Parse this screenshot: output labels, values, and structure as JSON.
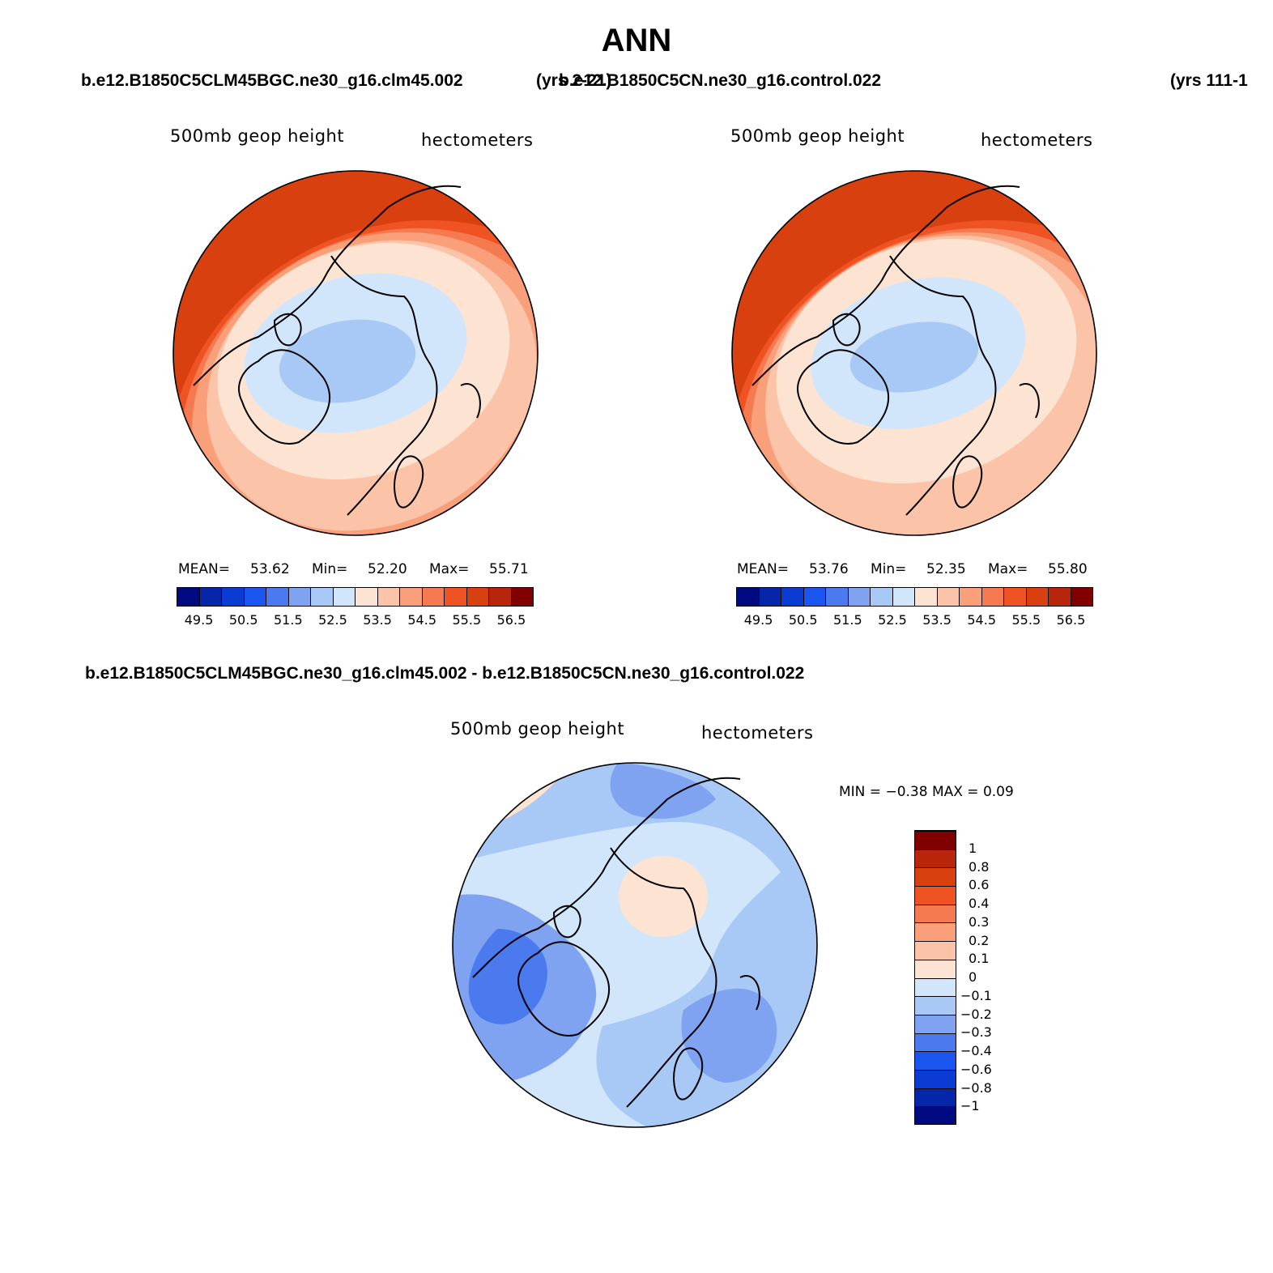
{
  "title": "ANN",
  "chart_data": [
    {
      "type": "heatmap",
      "projection": "north-polar-stereographic",
      "case_title": "b.e12.B1850C5CLM45BGC.ne30_g16.clm45.002",
      "years": "(yrs 2-21)",
      "left_label": "500mb geop height",
      "right_label": "hectometers",
      "mean_label": "MEAN=",
      "mean": "53.62",
      "min_label": "Min=",
      "min": "52.20",
      "max_label": "Max=",
      "max": "55.71",
      "colorbar_ticks": [
        "49.5",
        "50.5",
        "51.5",
        "52.5",
        "53.5",
        "54.5",
        "55.5",
        "56.5"
      ],
      "contour_bands": [
        "#a8c8f5",
        "#d2e6fb",
        "#fde4d2",
        "#fbc4a8",
        "#f9a07a",
        "#f67a4f",
        "#f05323",
        "#d9400f"
      ]
    },
    {
      "type": "heatmap",
      "projection": "north-polar-stereographic",
      "case_title": "b.e12.B1850C5CN.ne30_g16.control.022",
      "years": "(yrs 111-1",
      "left_label": "500mb geop height",
      "right_label": "hectometers",
      "mean_label": "MEAN=",
      "mean": "53.76",
      "min_label": "Min=",
      "min": "52.35",
      "max_label": "Max=",
      "max": "55.80",
      "colorbar_ticks": [
        "49.5",
        "50.5",
        "51.5",
        "52.5",
        "53.5",
        "54.5",
        "55.5",
        "56.5"
      ],
      "contour_bands": [
        "#a8c8f5",
        "#d2e6fb",
        "#fde4d2",
        "#fbc4a8",
        "#f9a07a",
        "#f67a4f",
        "#f05323",
        "#d9400f"
      ]
    },
    {
      "type": "heatmap",
      "projection": "north-polar-stereographic",
      "case_title": "b.e12.B1850C5CLM45BGC.ne30_g16.clm45.002 - b.e12.B1850C5CN.ne30_g16.control.022",
      "left_label": "500mb geop height",
      "right_label": "hectometers",
      "minmax_text": "MIN =   −0.38 MAX =    0.09",
      "colorbar_ticks": [
        "−1",
        "−0.8",
        "−0.6",
        "−0.4",
        "−0.3",
        "−0.2",
        "−0.1",
        "0",
        "0.1",
        "0.2",
        "0.3",
        "0.4",
        "0.6",
        "0.8",
        "1"
      ]
    }
  ],
  "colorscale_16": [
    "#000a80",
    "#0526a8",
    "#0a3cd4",
    "#1a55f0",
    "#4a7aee",
    "#7fa3f0",
    "#a8c8f5",
    "#d2e6fb",
    "#fde4d2",
    "#fbc4a8",
    "#f9a07a",
    "#f67a4f",
    "#f05323",
    "#d9400f",
    "#b8250a",
    "#800000"
  ],
  "land_color": "#000000",
  "edge_color": "#000000"
}
